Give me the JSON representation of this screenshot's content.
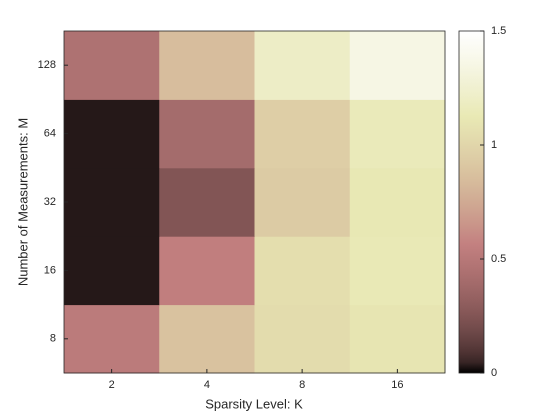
{
  "chart_data": {
    "type": "heatmap",
    "xlabel": "Sparsity Level: K",
    "ylabel": "Number of Measurements: M",
    "x": [
      "2",
      "4",
      "8",
      "16"
    ],
    "y": [
      "8",
      "16",
      "32",
      "64",
      "128"
    ],
    "values": [
      [
        0.52,
        0.88,
        1.04,
        1.1
      ],
      [
        0.02,
        0.55,
        1.05,
        1.13
      ],
      [
        0.02,
        0.25,
        0.93,
        1.12
      ],
      [
        0.02,
        0.4,
        0.95,
        1.15
      ],
      [
        0.45,
        0.85,
        1.2,
        1.35
      ]
    ],
    "colormap": "pink",
    "clim": [
      0,
      1.5
    ],
    "cticks": [
      0,
      0.5,
      1,
      1.5
    ]
  }
}
